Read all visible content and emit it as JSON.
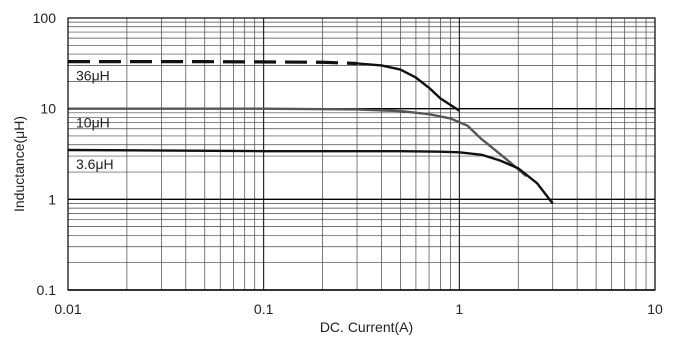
{
  "chart_data": {
    "type": "line",
    "xlabel": "DC. Current(A)",
    "ylabel": "Inductance(μH)",
    "x_scale": "log",
    "y_scale": "log",
    "xlim": [
      0.01,
      10
    ],
    "ylim": [
      0.1,
      100
    ],
    "x_ticks": [
      "0.01",
      "0.1",
      "1",
      "10"
    ],
    "y_ticks": [
      "100",
      "10",
      "1",
      "0.1"
    ],
    "grid": true,
    "series": [
      {
        "name": "36μH",
        "color": "#111111",
        "dashed_until_x": 0.3,
        "points": [
          [
            0.01,
            33
          ],
          [
            0.05,
            33
          ],
          [
            0.2,
            32.5
          ],
          [
            0.3,
            31.5
          ],
          [
            0.4,
            30
          ],
          [
            0.5,
            27
          ],
          [
            0.6,
            22
          ],
          [
            0.7,
            17
          ],
          [
            0.8,
            13
          ],
          [
            0.9,
            11
          ],
          [
            1.0,
            9.5
          ]
        ]
      },
      {
        "name": "10μH",
        "color": "#555555",
        "dashed_until_x": 0,
        "points": [
          [
            0.01,
            10
          ],
          [
            0.1,
            10
          ],
          [
            0.3,
            9.8
          ],
          [
            0.5,
            9.4
          ],
          [
            0.7,
            8.7
          ],
          [
            0.9,
            7.8
          ],
          [
            1.1,
            6.5
          ],
          [
            1.3,
            4.6
          ],
          [
            1.5,
            3.6
          ],
          [
            1.8,
            2.6
          ],
          [
            2.2,
            1.8
          ]
        ]
      },
      {
        "name": "3.6μH",
        "color": "#111111",
        "dashed_until_x": 0,
        "points": [
          [
            0.01,
            3.5
          ],
          [
            0.1,
            3.4
          ],
          [
            0.5,
            3.4
          ],
          [
            0.8,
            3.35
          ],
          [
            1.0,
            3.3
          ],
          [
            1.3,
            3.1
          ],
          [
            1.6,
            2.7
          ],
          [
            2.0,
            2.2
          ],
          [
            2.5,
            1.5
          ],
          [
            3.0,
            0.9
          ]
        ]
      }
    ]
  }
}
